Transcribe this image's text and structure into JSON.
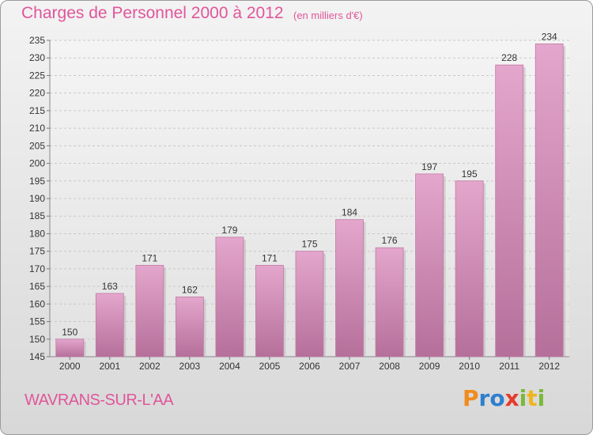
{
  "chart_data": {
    "type": "bar",
    "title": "Charges de Personnel 2000 à 2012",
    "subtitle": "(en milliers d'€)",
    "categories": [
      "2000",
      "2001",
      "2002",
      "2003",
      "2004",
      "2005",
      "2006",
      "2007",
      "2008",
      "2009",
      "2010",
      "2011",
      "2012"
    ],
    "values": [
      150,
      163,
      171,
      162,
      179,
      171,
      175,
      184,
      176,
      197,
      195,
      228,
      234
    ],
    "ylim": [
      145,
      235
    ],
    "yticks": [
      145,
      150,
      155,
      160,
      165,
      170,
      175,
      180,
      185,
      190,
      195,
      200,
      205,
      210,
      215,
      220,
      225,
      230,
      235
    ],
    "grid": true,
    "xlabel": "",
    "ylabel": "",
    "bar_color": "#d98bb8",
    "colors": {
      "accent": "#e0569a"
    }
  },
  "footer": {
    "commune": "WAVRANS-SUR-L'AA",
    "logo": {
      "letters": [
        "P",
        "r",
        "o",
        "x",
        "i",
        "t",
        "i"
      ],
      "colors": [
        "#f08c1e",
        "#2f7fcf",
        "#2f7fcf",
        "#e83a2a",
        "#7ab83a",
        "#f0b41e",
        "#7ab83a"
      ]
    }
  }
}
